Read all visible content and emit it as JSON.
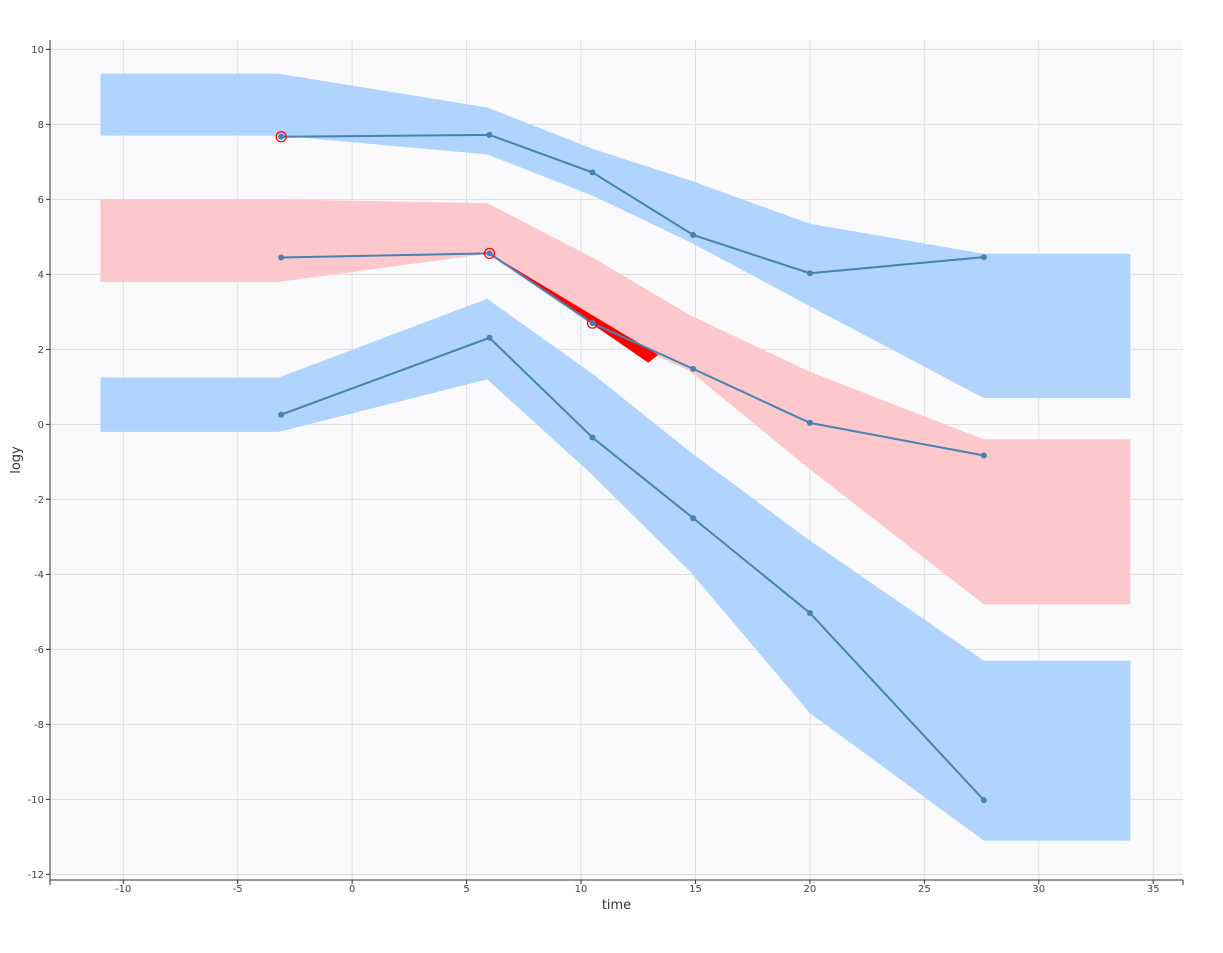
{
  "chart_data": {
    "type": "line",
    "xlabel": "time",
    "ylabel": "logy",
    "xlim": [
      -13.2,
      36.3
    ],
    "ylim": [
      -12.15,
      10.25
    ],
    "xticks": [
      -10,
      -5,
      0,
      5,
      10,
      15,
      20,
      25,
      30,
      35
    ],
    "yticks": [
      10,
      8,
      6,
      4,
      2,
      0,
      -2,
      -4,
      -6,
      -8,
      -10,
      -12
    ],
    "grid": true,
    "legend": "none",
    "colors": {
      "line": "#4682b4",
      "band_blue": "#b0d4fe",
      "band_red": "#fcc8cc",
      "highlight": "#ff0000",
      "plot_bg": "#fafafd",
      "grid": "#dddddd"
    },
    "bands": [
      {
        "color_key": "band_blue",
        "x": [
          -11,
          -3.2,
          5.9,
          10.5,
          14.8,
          20,
          27.6,
          34
        ],
        "upper": [
          9.35,
          9.35,
          8.45,
          7.35,
          6.5,
          5.35,
          4.55,
          4.55
        ],
        "lower": [
          7.7,
          7.7,
          7.2,
          6.1,
          4.85,
          3.15,
          0.7,
          0.7
        ]
      },
      {
        "color_key": "band_red",
        "x": [
          -11,
          -3.2,
          5.9,
          10.5,
          14.8,
          20,
          27.6,
          34
        ],
        "upper": [
          6.0,
          6.0,
          5.9,
          4.45,
          2.9,
          1.4,
          -0.4,
          -0.4
        ],
        "lower": [
          3.8,
          3.8,
          4.55,
          2.65,
          1.4,
          -1.2,
          -4.8,
          -4.8
        ]
      },
      {
        "color_key": "band_blue",
        "x": [
          -11,
          -3.2,
          5.9,
          10.5,
          14.8,
          20,
          27.6,
          34
        ],
        "upper": [
          1.25,
          1.25,
          3.35,
          1.35,
          -0.75,
          -3.1,
          -6.3,
          -6.3
        ],
        "lower": [
          -0.2,
          -0.2,
          1.2,
          -1.35,
          -3.95,
          -7.7,
          -11.1,
          -11.1
        ]
      }
    ],
    "series": [
      {
        "x": [
          -3.1,
          6.0,
          10.5,
          14.9,
          20.0,
          27.6
        ],
        "y": [
          7.67,
          7.72,
          6.72,
          5.05,
          4.03,
          4.46
        ]
      },
      {
        "x": [
          -3.1,
          6.0,
          10.5,
          14.9,
          20.0,
          27.6
        ],
        "y": [
          4.45,
          4.56,
          2.7,
          1.48,
          0.04,
          -0.83
        ]
      },
      {
        "x": [
          -3.1,
          6.0,
          10.5,
          14.9,
          20.0,
          27.6
        ],
        "y": [
          0.26,
          2.31,
          -0.35,
          -2.5,
          -5.03,
          -10.02
        ]
      }
    ],
    "highlighted_points": [
      {
        "x": -3.1,
        "y": 7.67
      },
      {
        "x": 6.0,
        "y": 4.56
      },
      {
        "x": 10.5,
        "y": 2.7
      }
    ],
    "highlighted_wedge": {
      "from": {
        "x": 6.0,
        "y": 4.56
      },
      "to": {
        "x": 13.2,
        "y": 1.75
      }
    }
  }
}
